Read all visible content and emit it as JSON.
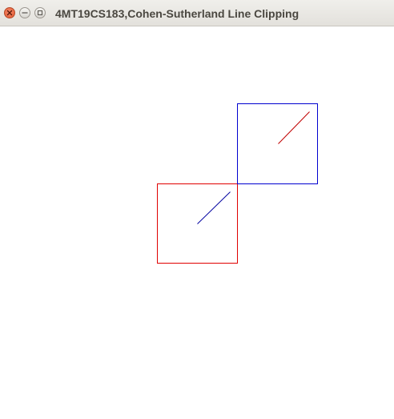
{
  "window": {
    "title": "4MT19CS183,Cohen-Sutherland Line Clipping",
    "buttons": [
      {
        "name": "close-icon"
      },
      {
        "name": "minimize-icon"
      },
      {
        "name": "maximize-icon"
      }
    ]
  },
  "colors": {
    "clip_window": "#e00000",
    "viewport": "#0000d0",
    "original_line": "#0000a0",
    "clipped_line": "#c00000"
  }
}
